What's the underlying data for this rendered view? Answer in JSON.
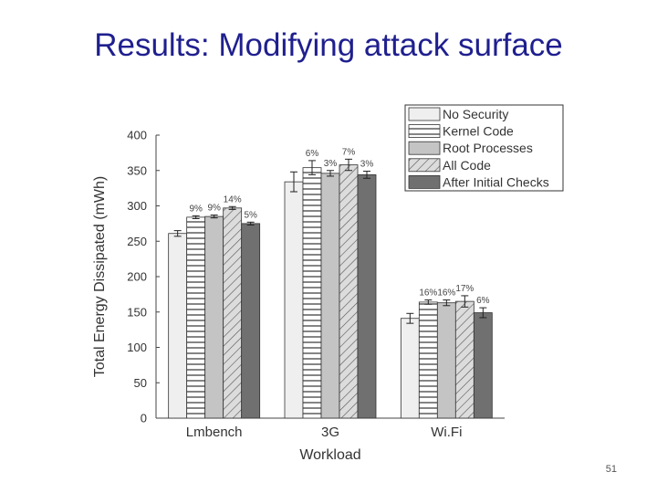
{
  "slide": {
    "title": "Results: Modifying attack surface",
    "page_number": "51"
  },
  "chart_data": {
    "type": "bar",
    "xlabel": "Workload",
    "ylabel": "Total Energy Dissipated (mWh)",
    "ylim": [
      0,
      400
    ],
    "yticks": [
      0,
      50,
      100,
      150,
      200,
      250,
      300,
      350,
      400
    ],
    "categories": [
      "Lmbench",
      "3G",
      "WiFi"
    ],
    "category_labels": [
      "Lmbench",
      "3G",
      "Wi.Fi"
    ],
    "legend_position": "top-right",
    "grid": false,
    "series": [
      {
        "name": "No Security",
        "values": [
          261,
          334,
          141
        ],
        "errors": [
          4,
          14,
          7
        ],
        "overhead_labels": [
          "",
          "",
          ""
        ],
        "fill": "#efefef",
        "pattern": "none"
      },
      {
        "name": "Kernel Code",
        "values": [
          284,
          354,
          164
        ],
        "errors": [
          2,
          10,
          3
        ],
        "overhead_labels": [
          "9%",
          "6%",
          "16%"
        ],
        "fill": "#ffffff",
        "pattern": "hlines"
      },
      {
        "name": "Root Processes",
        "values": [
          285,
          346,
          163
        ],
        "errors": [
          2,
          4,
          4
        ],
        "overhead_labels": [
          "9%",
          "3%",
          "16%"
        ],
        "fill": "#c4c4c4",
        "pattern": "none"
      },
      {
        "name": "All Code",
        "values": [
          297,
          358,
          165
        ],
        "errors": [
          2,
          8,
          8
        ],
        "overhead_labels": [
          "14%",
          "7%",
          "17%"
        ],
        "fill": "#dcdcdc",
        "pattern": "diag"
      },
      {
        "name": "After Initial Checks",
        "values": [
          275,
          344,
          149
        ],
        "errors": [
          2,
          5,
          7
        ],
        "overhead_labels": [
          "5%",
          "3%",
          "6%"
        ],
        "fill": "#707070",
        "pattern": "none"
      }
    ]
  }
}
